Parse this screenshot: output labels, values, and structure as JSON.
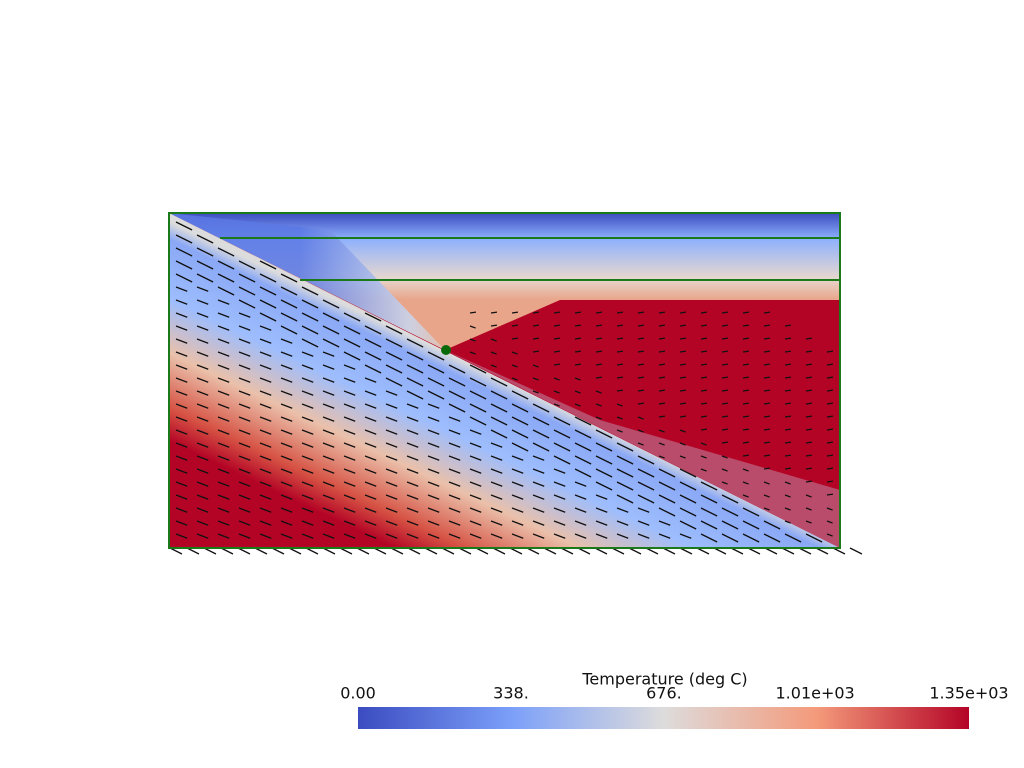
{
  "colorbar": {
    "title": "Temperature (deg C)",
    "range": [
      0,
      1350
    ],
    "ticks": [
      {
        "value": 0,
        "label": "0.00"
      },
      {
        "value": 338,
        "label": "338."
      },
      {
        "value": 676,
        "label": "676."
      },
      {
        "value": 1010,
        "label": "1.01e+03"
      },
      {
        "value": 1350,
        "label": "1.35e+03"
      }
    ]
  }
}
